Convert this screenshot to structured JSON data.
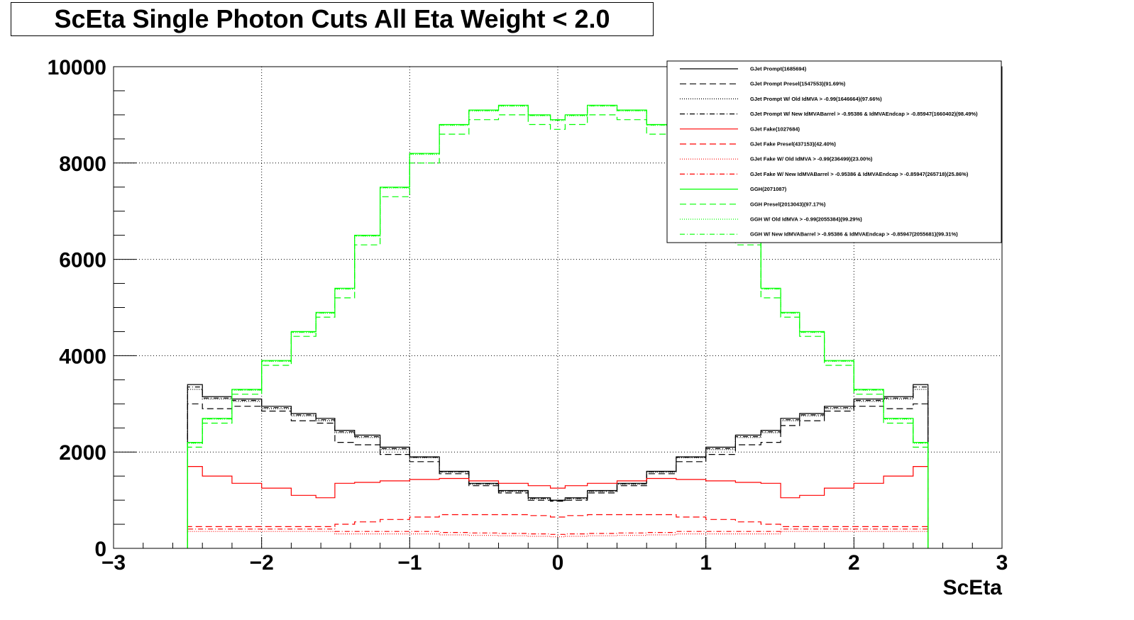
{
  "title": "ScEta Single Photon Cuts All Eta Weight < 2.0",
  "colors": {
    "black": "#000000",
    "red": "#ff0000",
    "green": "#00ff00"
  },
  "chart_data": {
    "type": "line",
    "title": "ScEta Single Photon Cuts All Eta Weight < 2.0",
    "xlabel": "ScEta",
    "ylabel": "",
    "xlim": [
      -3,
      3
    ],
    "ylim": [
      0,
      10000
    ],
    "grid": true,
    "legend_position": "top-right",
    "x_ticks": [
      "−3",
      "−2",
      "−1",
      "0",
      "1",
      "2",
      "3"
    ],
    "y_ticks": [
      "0",
      "2000",
      "4000",
      "6000",
      "8000",
      "10000"
    ],
    "series": [
      {
        "name": "GJet Prompt(1685694)",
        "color": "#000000",
        "dash": "solid",
        "x": [
          -2.5,
          -2.3,
          -2.1,
          -1.9,
          -1.7,
          -1.566,
          -1.4442,
          -1.3,
          -1.1,
          -0.9,
          -0.7,
          -0.5,
          -0.3,
          -0.1,
          0.0,
          0.1,
          0.3,
          0.5,
          0.7,
          0.9,
          1.1,
          1.3,
          1.4442,
          1.566,
          1.7,
          1.9,
          2.1,
          2.3,
          2.5
        ],
        "y": [
          3400,
          3150,
          3100,
          2950,
          2800,
          2700,
          2450,
          2350,
          2100,
          1900,
          1600,
          1350,
          1200,
          1050,
          1000,
          1050,
          1200,
          1350,
          1600,
          1900,
          2100,
          2350,
          2450,
          2700,
          2800,
          2950,
          3100,
          3150,
          3400
        ]
      },
      {
        "name": "GJet Prompt Presel(1547553)(91.69%)",
        "color": "#000000",
        "dash": "long-dash",
        "x": [
          -2.5,
          -2.3,
          -2.1,
          -1.9,
          -1.7,
          -1.566,
          -1.4442,
          -1.3,
          -1.1,
          -0.9,
          -0.7,
          -0.5,
          -0.3,
          -0.1,
          0.0,
          0.1,
          0.3,
          0.5,
          0.7,
          0.9,
          1.1,
          1.3,
          1.4442,
          1.566,
          1.7,
          1.9,
          2.1,
          2.3,
          2.5
        ],
        "y": [
          3000,
          2900,
          2950,
          2850,
          2650,
          2600,
          2200,
          2150,
          1950,
          1800,
          1550,
          1300,
          1150,
          1000,
          980,
          1000,
          1150,
          1300,
          1550,
          1800,
          1950,
          2150,
          2200,
          2550,
          2650,
          2850,
          2950,
          2900,
          3000
        ]
      },
      {
        "name": "GJet Prompt W/ Old IdMVA > -0.99(1646664)(97.66%)",
        "color": "#000000",
        "dash": "dotted",
        "x": [
          -2.5,
          -2.3,
          -2.1,
          -1.9,
          -1.7,
          -1.566,
          -1.4442,
          -1.3,
          -1.1,
          -0.9,
          -0.7,
          -0.5,
          -0.3,
          -0.1,
          0.0,
          0.1,
          0.3,
          0.5,
          0.7,
          0.9,
          1.1,
          1.3,
          1.4442,
          1.566,
          1.7,
          1.9,
          2.1,
          2.3,
          2.5
        ],
        "y": [
          3300,
          3100,
          3050,
          2900,
          2750,
          2650,
          2400,
          2300,
          2050,
          1880,
          1580,
          1330,
          1180,
          1030,
          990,
          1030,
          1180,
          1330,
          1580,
          1880,
          2050,
          2300,
          2400,
          2650,
          2750,
          2900,
          3050,
          3100,
          3300
        ]
      },
      {
        "name": "GJet Prompt W/ New IdMVABarrel > -0.95386 & IdMVAEndcap > -0.85947(1660402)(98.49%)",
        "color": "#000000",
        "dash": "dash-dot",
        "x": [
          -2.5,
          -2.3,
          -2.1,
          -1.9,
          -1.7,
          -1.566,
          -1.4442,
          -1.3,
          -1.1,
          -0.9,
          -0.7,
          -0.5,
          -0.3,
          -0.1,
          0.0,
          0.1,
          0.3,
          0.5,
          0.7,
          0.9,
          1.1,
          1.3,
          1.4442,
          1.566,
          1.7,
          1.9,
          2.1,
          2.3,
          2.5
        ],
        "y": [
          3350,
          3120,
          3070,
          2920,
          2770,
          2670,
          2420,
          2320,
          2070,
          1890,
          1590,
          1340,
          1190,
          1040,
          995,
          1040,
          1190,
          1340,
          1590,
          1890,
          2070,
          2320,
          2420,
          2670,
          2770,
          2920,
          3070,
          3120,
          3350
        ]
      },
      {
        "name": "GJet Fake(1027684)",
        "color": "#ff0000",
        "dash": "solid",
        "x": [
          -2.5,
          -2.3,
          -2.1,
          -1.9,
          -1.7,
          -1.566,
          -1.4442,
          -1.3,
          -1.1,
          -0.9,
          -0.7,
          -0.5,
          -0.3,
          -0.1,
          0.0,
          0.1,
          0.3,
          0.5,
          0.7,
          0.9,
          1.1,
          1.3,
          1.4442,
          1.566,
          1.7,
          1.9,
          2.1,
          2.3,
          2.5
        ],
        "y": [
          1700,
          1500,
          1350,
          1250,
          1100,
          1050,
          1350,
          1370,
          1400,
          1430,
          1450,
          1400,
          1350,
          1300,
          1250,
          1300,
          1350,
          1400,
          1450,
          1430,
          1400,
          1370,
          1350,
          1050,
          1100,
          1250,
          1350,
          1500,
          1700
        ]
      },
      {
        "name": "GJet Fake Presel(437153)(42.40%)",
        "color": "#ff0000",
        "dash": "long-dash",
        "x": [
          -2.5,
          -2.3,
          -2.1,
          -1.9,
          -1.7,
          -1.566,
          -1.4442,
          -1.3,
          -1.1,
          -0.9,
          -0.7,
          -0.5,
          -0.3,
          -0.1,
          0.0,
          0.1,
          0.3,
          0.5,
          0.7,
          0.9,
          1.1,
          1.3,
          1.4442,
          1.566,
          1.7,
          1.9,
          2.1,
          2.3,
          2.5
        ],
        "y": [
          450,
          450,
          450,
          450,
          450,
          450,
          500,
          550,
          600,
          650,
          700,
          700,
          700,
          680,
          650,
          680,
          700,
          700,
          700,
          650,
          600,
          550,
          500,
          450,
          450,
          450,
          450,
          450,
          450
        ]
      },
      {
        "name": "GJet Fake W/ Old IdMVA > -0.99(236499)(23.00%)",
        "color": "#ff0000",
        "dash": "dotted",
        "x": [
          -2.5,
          -2.3,
          -2.1,
          -1.9,
          -1.7,
          -1.566,
          -1.4442,
          -1.3,
          -1.1,
          -0.9,
          -0.7,
          -0.5,
          -0.3,
          -0.1,
          0.0,
          0.1,
          0.3,
          0.5,
          0.7,
          0.9,
          1.1,
          1.3,
          1.4442,
          1.566,
          1.7,
          1.9,
          2.1,
          2.3,
          2.5
        ],
        "y": [
          350,
          350,
          350,
          350,
          350,
          350,
          300,
          300,
          300,
          300,
          280,
          270,
          260,
          250,
          240,
          250,
          260,
          270,
          280,
          300,
          300,
          300,
          300,
          350,
          350,
          350,
          350,
          350,
          350
        ]
      },
      {
        "name": "GJet Fake W/ New IdMVABarrel > -0.95386 & IdMVAEndcap > -0.85947(265718)(25.86%)",
        "color": "#ff0000",
        "dash": "dash-dot",
        "x": [
          -2.5,
          -2.3,
          -2.1,
          -1.9,
          -1.7,
          -1.566,
          -1.4442,
          -1.3,
          -1.1,
          -0.9,
          -0.7,
          -0.5,
          -0.3,
          -0.1,
          0.0,
          0.1,
          0.3,
          0.5,
          0.7,
          0.9,
          1.1,
          1.3,
          1.4442,
          1.566,
          1.7,
          1.9,
          2.1,
          2.3,
          2.5
        ],
        "y": [
          400,
          400,
          400,
          400,
          400,
          400,
          350,
          350,
          350,
          350,
          330,
          320,
          310,
          300,
          290,
          300,
          310,
          320,
          330,
          350,
          350,
          350,
          350,
          400,
          400,
          400,
          400,
          400,
          400
        ]
      },
      {
        "name": "GGH(2071087)",
        "color": "#00ff00",
        "dash": "solid",
        "x": [
          -2.5,
          -2.3,
          -2.1,
          -1.9,
          -1.7,
          -1.566,
          -1.4442,
          -1.3,
          -1.1,
          -0.9,
          -0.7,
          -0.5,
          -0.3,
          -0.1,
          0.0,
          0.1,
          0.3,
          0.5,
          0.7,
          0.9,
          1.1,
          1.3,
          1.4442,
          1.566,
          1.7,
          1.9,
          2.1,
          2.3,
          2.5
        ],
        "y": [
          2200,
          2700,
          3300,
          3900,
          4500,
          4900,
          5400,
          6500,
          7500,
          8200,
          8800,
          9100,
          9200,
          9000,
          8900,
          9000,
          9200,
          9100,
          8800,
          8200,
          7500,
          6500,
          5400,
          4900,
          4500,
          3900,
          3300,
          2700,
          2200
        ]
      },
      {
        "name": "GGH Presel(2013043)(97.17%)",
        "color": "#00ff00",
        "dash": "long-dash",
        "x": [
          -2.5,
          -2.3,
          -2.1,
          -1.9,
          -1.7,
          -1.566,
          -1.4442,
          -1.3,
          -1.1,
          -0.9,
          -0.7,
          -0.5,
          -0.3,
          -0.1,
          0.0,
          0.1,
          0.3,
          0.5,
          0.7,
          0.9,
          1.1,
          1.3,
          1.4442,
          1.566,
          1.7,
          1.9,
          2.1,
          2.3,
          2.5
        ],
        "y": [
          2100,
          2600,
          3200,
          3800,
          4400,
          4800,
          5200,
          6300,
          7300,
          8000,
          8600,
          8900,
          9000,
          8800,
          8700,
          8800,
          9000,
          8900,
          8600,
          8000,
          7300,
          6300,
          5200,
          4800,
          4400,
          3800,
          3200,
          2600,
          2100
        ]
      },
      {
        "name": "GGH W/ Old IdMVA > -0.99(2055384)(99.29%)",
        "color": "#00ff00",
        "dash": "dotted",
        "x": [
          -2.5,
          -2.3,
          -2.1,
          -1.9,
          -1.7,
          -1.566,
          -1.4442,
          -1.3,
          -1.1,
          -0.9,
          -0.7,
          -0.5,
          -0.3,
          -0.1,
          0.0,
          0.1,
          0.3,
          0.5,
          0.7,
          0.9,
          1.1,
          1.3,
          1.4442,
          1.566,
          1.7,
          1.9,
          2.1,
          2.3,
          2.5
        ],
        "y": [
          2180,
          2680,
          3280,
          3880,
          4480,
          4880,
          5380,
          6480,
          7480,
          8180,
          8780,
          9080,
          9180,
          8980,
          8880,
          8980,
          9180,
          9080,
          8780,
          8180,
          7480,
          6480,
          5380,
          4880,
          4480,
          3880,
          3280,
          2680,
          2180
        ]
      },
      {
        "name": "GGH W/ New IdMVABarrel > -0.95386 & IdMVAEndcap > -0.85947(2055681)(99.31%)",
        "color": "#00ff00",
        "dash": "dash-dot",
        "x": [
          -2.5,
          -2.3,
          -2.1,
          -1.9,
          -1.7,
          -1.566,
          -1.4442,
          -1.3,
          -1.1,
          -0.9,
          -0.7,
          -0.5,
          -0.3,
          -0.1,
          0.0,
          0.1,
          0.3,
          0.5,
          0.7,
          0.9,
          1.1,
          1.3,
          1.4442,
          1.566,
          1.7,
          1.9,
          2.1,
          2.3,
          2.5
        ],
        "y": [
          2190,
          2690,
          3290,
          3890,
          4490,
          4890,
          5390,
          6490,
          7490,
          8190,
          8790,
          9090,
          9190,
          8990,
          8890,
          8990,
          9190,
          9090,
          8790,
          8190,
          7490,
          6490,
          5390,
          4890,
          4490,
          3890,
          3290,
          2690,
          2190
        ]
      }
    ]
  }
}
